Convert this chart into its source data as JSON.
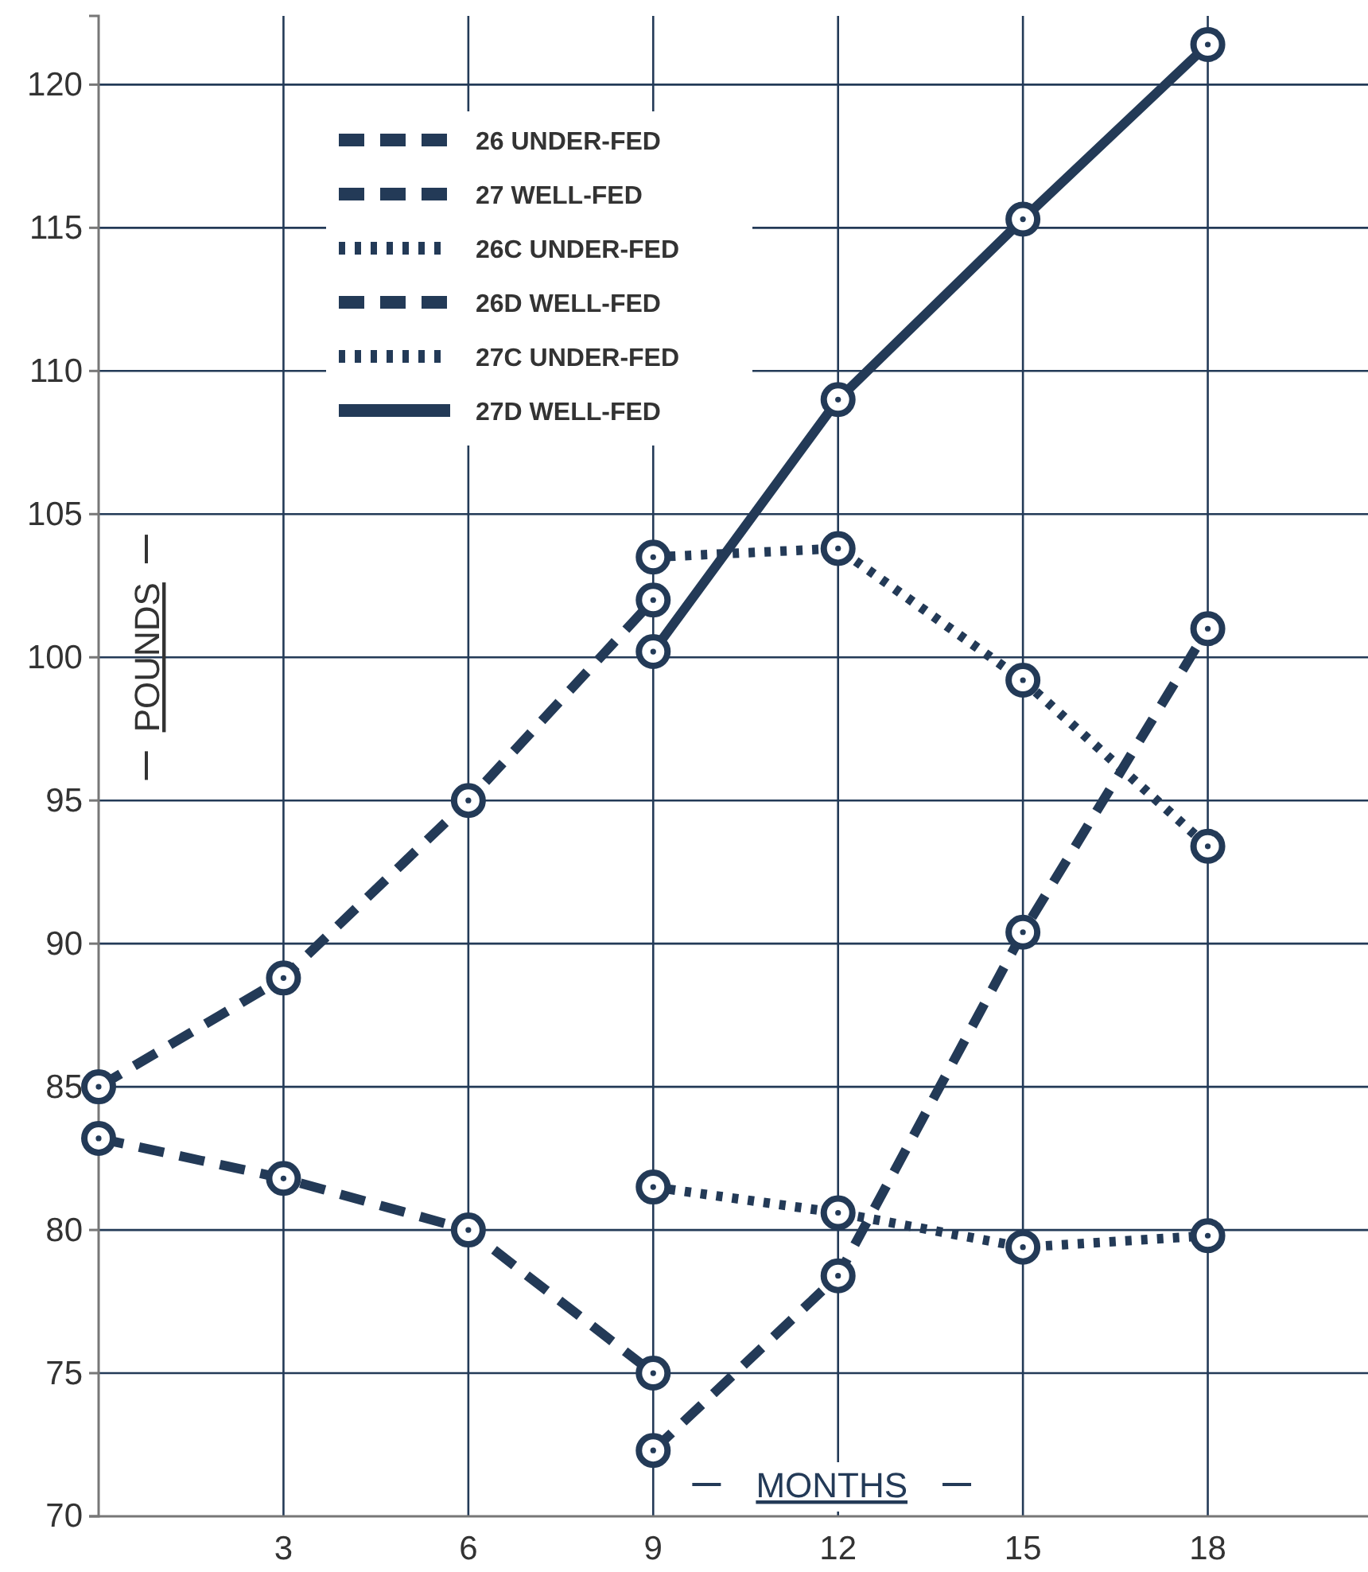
{
  "chart_data": {
    "type": "line",
    "xlabel": "MONTHS",
    "ylabel": "POUNDS",
    "x": [
      0,
      3,
      6,
      9,
      12,
      15,
      18
    ],
    "xlim": [
      0,
      20.6
    ],
    "xticks": [
      {
        "value": 0,
        "label": null
      },
      3,
      6,
      9,
      12,
      15,
      18
    ],
    "ylim": [
      70,
      122.4
    ],
    "yticks": [
      70,
      75,
      80,
      85,
      90,
      95,
      100,
      105,
      110,
      115,
      120
    ],
    "grid": true,
    "legend": "top left",
    "marker": "circle",
    "series": [
      {
        "name": "26 UNDER-FED",
        "color": "#233a57",
        "line_style": "dashed",
        "values": [
          83.2,
          81.8,
          80,
          75,
          null,
          null,
          null
        ]
      },
      {
        "name": "27 WELL-FED",
        "color": "#233a57",
        "line_style": "dashed",
        "values": [
          85,
          88.8,
          95,
          102,
          null,
          null,
          null
        ]
      },
      {
        "name": "26C UNDER-FED",
        "color": "#233a57",
        "line_style": "dotted",
        "values": [
          null,
          null,
          null,
          81.5,
          80.6,
          79.4,
          79.8
        ]
      },
      {
        "name": "26D WELL-FED",
        "color": "#233a57",
        "line_style": "dashed",
        "values": [
          null,
          null,
          null,
          72.3,
          78.4,
          90.4,
          101
        ]
      },
      {
        "name": "27C UNDER-FED",
        "color": "#233a57",
        "line_style": "dotted",
        "values": [
          null,
          null,
          null,
          103.5,
          103.8,
          99.2,
          93.4
        ]
      },
      {
        "name": "27D WELL-FED",
        "color": "#233a57",
        "line_style": "solid",
        "values": [
          null,
          null,
          null,
          100.2,
          109,
          115.3,
          121.4
        ]
      }
    ]
  }
}
